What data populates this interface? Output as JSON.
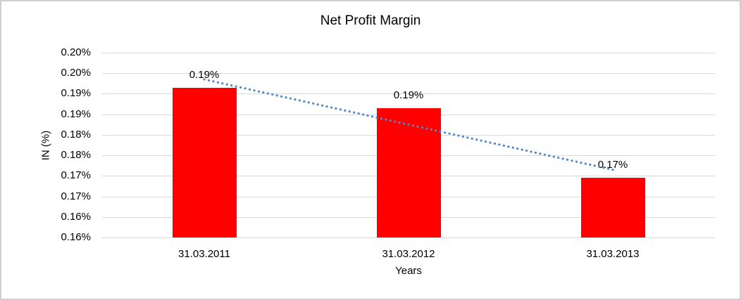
{
  "page": {
    "background_color": "#ffffff",
    "frame_border_color": "#cfcfcf"
  },
  "chart_data": {
    "type": "bar",
    "title": "Net Profit Margin",
    "xlabel": "Years",
    "ylabel": "IN (%)",
    "categories": [
      "31.03.2011",
      "31.03.2012",
      "31.03.2013"
    ],
    "values": [
      0.194,
      0.189,
      0.172
    ],
    "bar_labels": [
      "0.19%",
      "0.19%",
      "0.17%"
    ],
    "y_ticks_top_to_bottom": [
      "0.20%",
      "0.20%",
      "0.19%",
      "0.19%",
      "0.18%",
      "0.18%",
      "0.17%",
      "0.17%",
      "0.16%",
      "0.16%"
    ],
    "y_axis_min": 0.1575,
    "y_axis_max": 0.2025,
    "unit": "percent",
    "grid": true,
    "legend": "none",
    "bar_color": "#ff0000",
    "gridline_color": "#d9d9d9",
    "text_color": "#000000",
    "trendline": {
      "type": "linear",
      "style": "dotted",
      "color": "#4f87c9",
      "start_value": 0.196,
      "end_value": 0.174
    }
  }
}
